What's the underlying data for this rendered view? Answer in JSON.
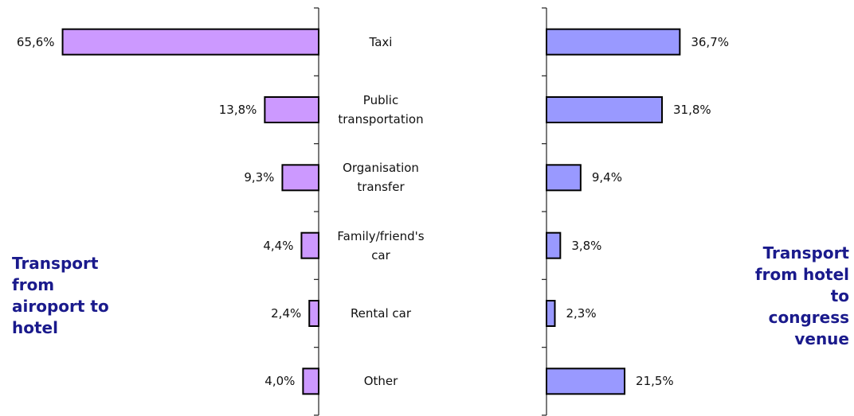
{
  "chart_data": {
    "type": "bar",
    "categories": [
      "Taxi",
      "Public transportation",
      "Organisation transfer",
      "Family/friend's car",
      "Rental car",
      "Other"
    ],
    "series": [
      {
        "name": "Transport from airoport to hotel",
        "color": "#cc99ff",
        "values": [
          65.6,
          13.8,
          9.3,
          4.4,
          2.4,
          4.0
        ],
        "value_labels": [
          "65,6%",
          "13,8%",
          "9,3%",
          "4,4%",
          "2,4%",
          "4,0%"
        ]
      },
      {
        "name": "Transport from hotel to congress venue",
        "color": "#9999ff",
        "values": [
          36.7,
          31.8,
          9.4,
          3.8,
          2.3,
          21.5
        ],
        "value_labels": [
          "36,7%",
          "31,8%",
          "9,4%",
          "3,8%",
          "2,3%",
          "21,5%"
        ]
      }
    ]
  }
}
